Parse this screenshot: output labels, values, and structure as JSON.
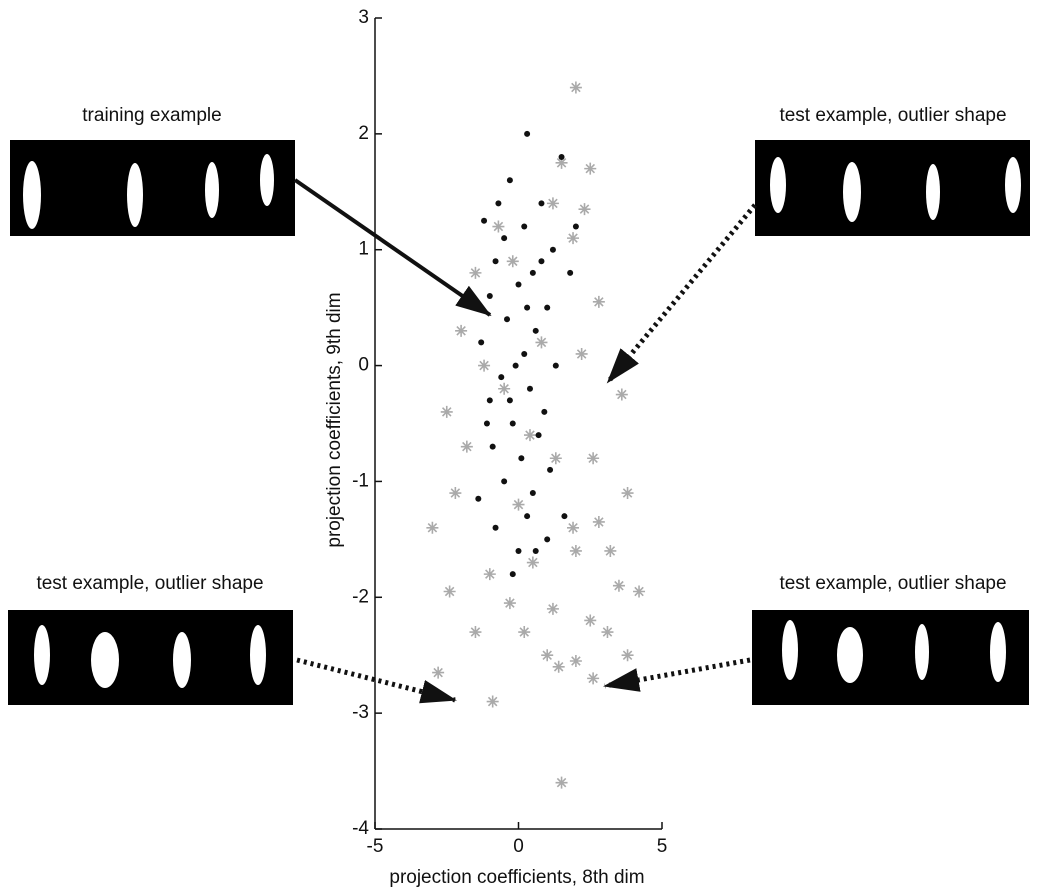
{
  "chart_data": {
    "type": "scatter",
    "xlabel": "projection coefficients, 8th dim",
    "ylabel": "projection coefficients, 9th dim",
    "xlim": [
      -5,
      5
    ],
    "xticks": [
      -5,
      0,
      5
    ],
    "ylim": [
      -4,
      3
    ],
    "yticks": [
      -4,
      -3,
      -2,
      -1,
      0,
      1,
      2,
      3
    ],
    "annotations": [
      "training example",
      "test example, outlier shape",
      "test example, outlier shape",
      "test example, outlier shape"
    ],
    "series": [
      {
        "color": "#aaaaaa",
        "marker": "star",
        "x": [
          2.0,
          1.5,
          2.5,
          1.2,
          2.3,
          -0.7,
          1.9,
          -1.5,
          2.8,
          -2.0,
          2.2,
          3.6,
          -2.5,
          -1.8,
          2.6,
          -2.2,
          3.8,
          -3.0,
          1.9,
          2.8,
          -1.0,
          0.5,
          2.0,
          -2.4,
          4.2,
          3.5,
          1.2,
          -0.3,
          2.5,
          -1.5,
          3.1,
          1.0,
          2.0,
          -2.8,
          3.8,
          1.4,
          2.6,
          -0.9,
          1.5,
          0.0,
          -0.5,
          0.8,
          -0.2,
          0.4,
          1.3,
          -1.2,
          3.2,
          0.2
        ],
        "values": [
          2.4,
          1.75,
          1.7,
          1.4,
          1.35,
          1.2,
          1.1,
          0.8,
          0.55,
          0.3,
          0.1,
          -0.25,
          -0.4,
          -0.7,
          -0.8,
          -1.1,
          -1.1,
          -1.4,
          -1.4,
          -1.35,
          -1.8,
          -1.7,
          -1.6,
          -1.95,
          -1.95,
          -1.9,
          -2.1,
          -2.05,
          -2.2,
          -2.3,
          -2.3,
          -2.5,
          -2.55,
          -2.65,
          -2.5,
          -2.6,
          -2.7,
          -2.9,
          -3.6,
          -1.2,
          -0.2,
          0.2,
          0.9,
          -0.6,
          -0.8,
          0.0,
          -1.6,
          -2.3
        ]
      },
      {
        "color": "#111111",
        "marker": "dot",
        "x": [
          0.3,
          -1.2,
          1.5,
          -0.3,
          0.8,
          -0.5,
          0.2,
          1.2,
          -0.8,
          0.5,
          -1.0,
          0.0,
          1.0,
          -0.4,
          0.6,
          -1.3,
          0.2,
          1.3,
          -0.6,
          0.4,
          -1.0,
          0.9,
          -0.2,
          0.7,
          -0.9,
          0.1,
          1.1,
          -0.5,
          0.5,
          -1.4,
          0.3,
          1.6,
          -0.8,
          0.0,
          -0.2,
          1.0,
          -0.1,
          0.3,
          -0.7,
          1.8,
          2.0,
          -0.3,
          0.8,
          -1.1,
          0.6
        ],
        "values": [
          2.0,
          1.25,
          1.8,
          1.6,
          1.4,
          1.1,
          1.2,
          1.0,
          0.9,
          0.8,
          0.6,
          0.7,
          0.5,
          0.4,
          0.3,
          0.2,
          0.1,
          0.0,
          -0.1,
          -0.2,
          -0.3,
          -0.4,
          -0.5,
          -0.6,
          -0.7,
          -0.8,
          -0.9,
          -1.0,
          -1.1,
          -1.15,
          -1.3,
          -1.3,
          -1.4,
          -1.6,
          -1.8,
          -1.5,
          0.0,
          0.5,
          1.4,
          0.8,
          1.2,
          -0.3,
          0.9,
          -0.5,
          -1.6
        ]
      }
    ]
  }
}
